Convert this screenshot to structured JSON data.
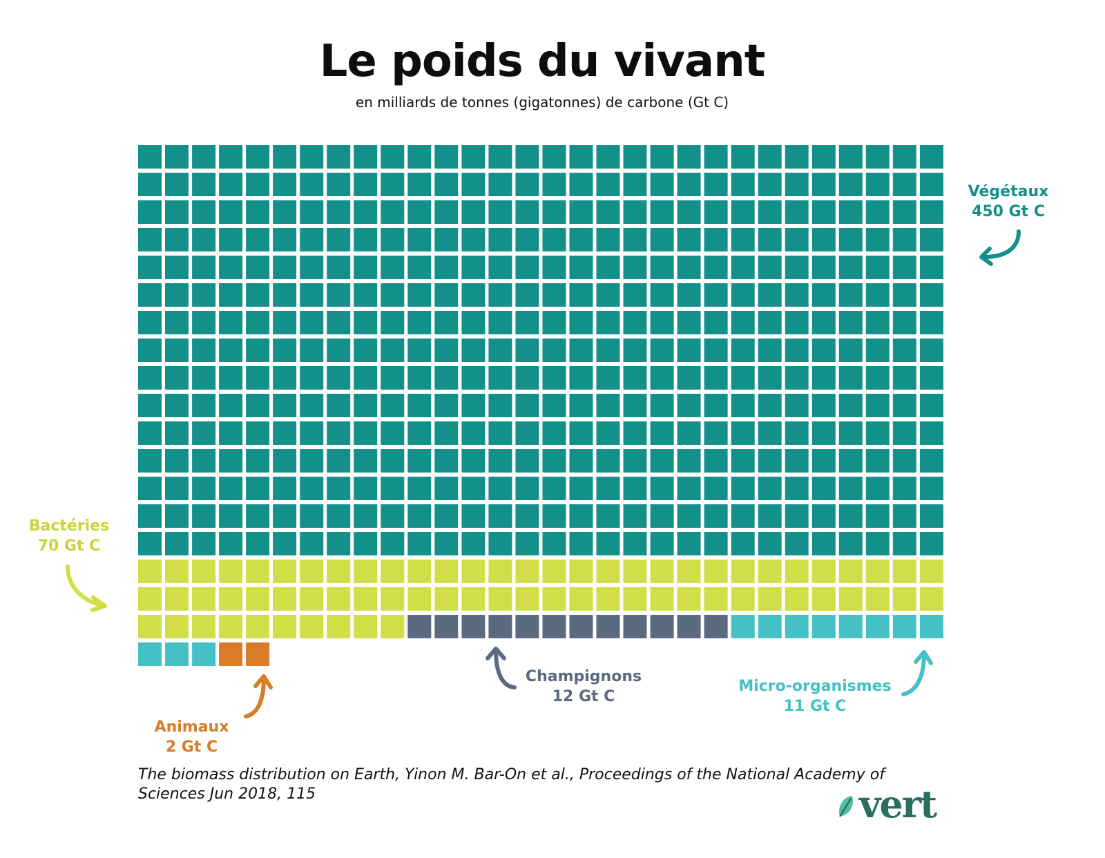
{
  "title": "Le poids du vivant",
  "subtitle": "en milliards de tonnes (gigatonnes) de carbone (Gt C)",
  "chart_data": {
    "type": "waffle",
    "unit": "Gt C",
    "columns": 30,
    "series": [
      {
        "name": "Végétaux",
        "value": 450,
        "label_value": "450 Gt C",
        "color": "#14908a"
      },
      {
        "name": "Bactéries",
        "value": 70,
        "label_value": "70 Gt C",
        "color": "#d2de47"
      },
      {
        "name": "Champignons",
        "value": 12,
        "label_value": "12 Gt C",
        "color": "#5a6a80"
      },
      {
        "name": "Micro-organismes",
        "value": 11,
        "label_value": "11 Gt C",
        "color": "#45c0c5"
      },
      {
        "name": "Animaux",
        "value": 2,
        "label_value": "2 Gt C",
        "color": "#d97b27"
      }
    ]
  },
  "source": "The biomass distribution on Earth, Yinon M. Bar-On et al., Proceedings of the National Academy of Sciences Jun 2018, 115",
  "logo": "vert"
}
